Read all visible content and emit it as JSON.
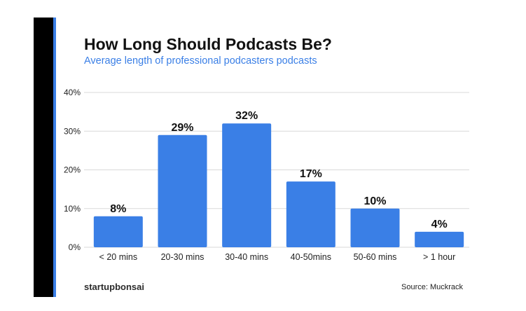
{
  "colors": {
    "bar": "#3a7fe6",
    "accent": "#3a7fe6",
    "subtitle": "#3a7fe6",
    "grid": "#d9d9d9",
    "text": "#111111"
  },
  "brand": {
    "part1": "startup",
    "part2": "bonsai"
  },
  "source": "Source: Muckrack",
  "chart_data": {
    "type": "bar",
    "title": "How Long Should Podcasts Be?",
    "subtitle": "Average length of professional podcasters podcasts",
    "categories": [
      "< 20 mins",
      "20-30 mins",
      "30-40 mins",
      "40-50mins",
      "50-60 mins",
      "> 1 hour"
    ],
    "values": [
      8,
      29,
      32,
      17,
      10,
      4
    ],
    "data_labels": [
      "8%",
      "29%",
      "32%",
      "17%",
      "10%",
      "4%"
    ],
    "yticks": [
      0,
      10,
      20,
      30,
      40
    ],
    "ytick_labels": [
      "0%",
      "10%",
      "20%",
      "30%",
      "40%"
    ],
    "ylim": [
      0,
      40
    ],
    "grid": true,
    "legend": "none"
  }
}
